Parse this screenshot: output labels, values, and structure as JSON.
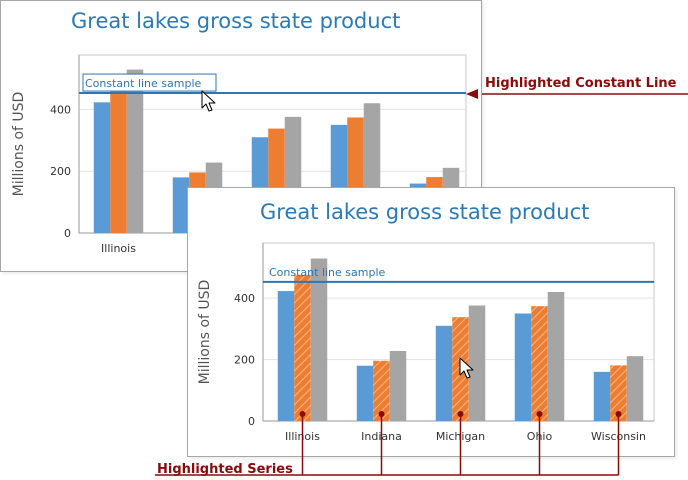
{
  "chart_data": [
    {
      "type": "bar",
      "title": "Great lakes gross state product",
      "ylabel": "Millions of USD",
      "categories": [
        "Illinois",
        "Indiana",
        "Michigan",
        "Ohio",
        "Wisconsin"
      ],
      "visible_categories": [
        "Illinois",
        "Ind"
      ],
      "series": [
        {
          "color": "#5b9bd5",
          "values": [
            423,
            180,
            310,
            350,
            160
          ]
        },
        {
          "color": "#ed7d31",
          "values": [
            476,
            196,
            338,
            374,
            181
          ]
        },
        {
          "color": "#a5a5a5",
          "values": [
            529,
            228,
            376,
            420,
            211
          ]
        }
      ],
      "yticks": [
        0,
        200,
        400
      ],
      "ylim": [
        0,
        560
      ],
      "constant_line": {
        "value": 453,
        "label": "Constant line sample",
        "highlighted": true
      },
      "grid": true,
      "legend": "none"
    },
    {
      "type": "bar",
      "title": "Great lakes gross state product",
      "ylabel": "Millions of USD",
      "categories": [
        "Illinois",
        "Indiana",
        "Michigan",
        "Ohio",
        "Wisconsin"
      ],
      "visible_categories": [
        "Illinois",
        "Indiana",
        "Michigan",
        "Ohio",
        "Wisconsin"
      ],
      "series": [
        {
          "color": "#5b9bd5",
          "values": [
            423,
            180,
            310,
            350,
            160
          ]
        },
        {
          "color": "#ed7d31",
          "values": [
            476,
            196,
            338,
            374,
            181
          ],
          "highlighted": true
        },
        {
          "color": "#a5a5a5",
          "values": [
            529,
            228,
            376,
            420,
            211
          ]
        }
      ],
      "yticks": [
        0,
        200,
        400
      ],
      "ylim": [
        0,
        560
      ],
      "constant_line": {
        "value": 453,
        "label": "Constant line sample",
        "highlighted": false
      },
      "grid": true,
      "legend": "none"
    }
  ],
  "annotations": {
    "constant_line": "Highlighted Constant Line",
    "series": "Highlighted Series"
  },
  "colors": {
    "title": "#2a7ab8",
    "constant_line": "#2e75b6",
    "annotation": "#8b0a0a",
    "grid": "#e3e3e3",
    "axis": "#9a9a9a"
  }
}
